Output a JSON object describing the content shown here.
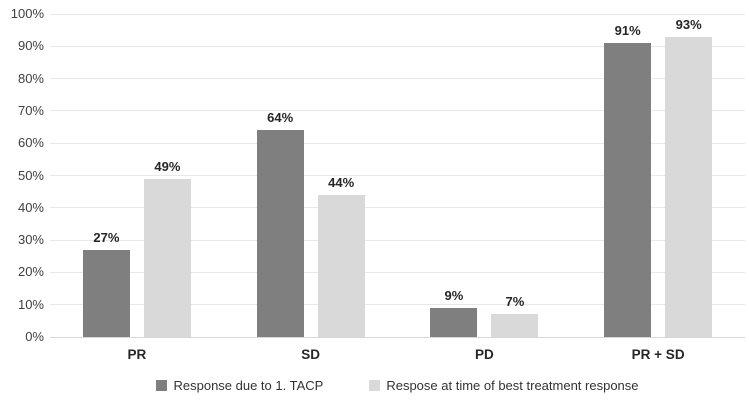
{
  "chart_data": {
    "type": "bar",
    "categories": [
      "PR",
      "SD",
      "PD",
      "PR + SD"
    ],
    "series": [
      {
        "name": "Response due to 1. TACP",
        "color": "#7f7f7f",
        "values": [
          27,
          64,
          9,
          91
        ]
      },
      {
        "name": "Respose at time of best treatment response",
        "color": "#d9d9d9",
        "values": [
          49,
          44,
          7,
          93
        ]
      }
    ],
    "title": "",
    "xlabel": "",
    "ylabel": "",
    "ylim": [
      0,
      100
    ],
    "ytick_step": 10,
    "ytick_suffix": "%",
    "data_label_suffix": "%",
    "grid": true,
    "legend_position": "bottom"
  },
  "colors": {
    "background": "#ffffff",
    "gridline": "#e9e9e9",
    "axis_baseline": "#d6d6d6",
    "axis_text": "#404040",
    "label_text": "#262626",
    "series_dark": "#7f7f7f",
    "series_light": "#d9d9d9"
  }
}
